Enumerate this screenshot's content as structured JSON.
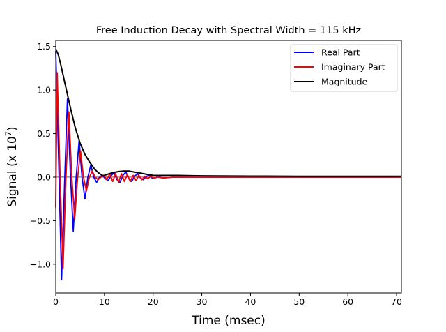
{
  "chart_data": {
    "type": "line",
    "title": "Free Induction Decay with Spectral Width = 115 kHz",
    "xlabel": "Time (msec)",
    "ylabel_main": "Signal (x 10",
    "ylabel_exp": "7",
    "ylabel_close": ")",
    "xlim": [
      0,
      71
    ],
    "ylim": [
      -1.33,
      1.57
    ],
    "xticks": [
      0,
      10,
      20,
      30,
      40,
      50,
      60,
      70
    ],
    "xtick_labels": [
      "0",
      "10",
      "20",
      "30",
      "40",
      "50",
      "60",
      "70"
    ],
    "yticks": [
      -1.0,
      -0.5,
      0.0,
      0.5,
      1.0,
      1.5
    ],
    "ytick_labels": [
      "−1.0",
      "−0.5",
      "0.0",
      "0.5",
      "1.0",
      "1.5"
    ],
    "grid": false,
    "legend_position": "top-right",
    "series": [
      {
        "name": "Real Part",
        "color": "#0000ff",
        "x": [
          0.0,
          0.6,
          1.2,
          1.8,
          2.4,
          3.0,
          3.6,
          4.2,
          4.8,
          5.4,
          6.0,
          6.6,
          7.2,
          7.8,
          8.4,
          9.0,
          9.6,
          10.2,
          10.8,
          11.4,
          12.0,
          12.6,
          13.2,
          13.8,
          14.4,
          15.0,
          15.6,
          16.2,
          16.8,
          17.4,
          18.0,
          18.6,
          19.2,
          19.8,
          20.4,
          21.0,
          22.0,
          24.0,
          27.0,
          30.0,
          35.0,
          40.0,
          50.0,
          60.0,
          71.0
        ],
        "values": [
          1.45,
          0.2,
          -1.18,
          -0.1,
          0.9,
          0.05,
          -0.62,
          0.0,
          0.42,
          0.0,
          -0.25,
          0.0,
          0.14,
          0.0,
          -0.06,
          0.0,
          0.02,
          -0.02,
          -0.04,
          0.02,
          0.05,
          -0.03,
          -0.06,
          0.02,
          0.06,
          -0.02,
          -0.05,
          0.01,
          0.04,
          -0.01,
          -0.03,
          0.01,
          0.02,
          -0.01,
          -0.01,
          0.01,
          -0.01,
          0.0,
          0.0,
          0.0,
          0.0,
          0.0,
          0.0,
          0.0,
          0.0
        ]
      },
      {
        "name": "Imaginary Part",
        "color": "#ff0000",
        "x": [
          0.0,
          0.3,
          0.9,
          1.5,
          2.1,
          2.7,
          3.3,
          3.9,
          4.5,
          5.1,
          5.7,
          6.3,
          6.9,
          7.5,
          8.1,
          8.7,
          9.3,
          9.9,
          10.5,
          11.1,
          11.7,
          12.3,
          12.9,
          13.5,
          14.1,
          14.7,
          15.3,
          15.9,
          16.5,
          17.1,
          17.7,
          18.3,
          18.9,
          19.5,
          20.1,
          21.0,
          22.0,
          24.0,
          27.0,
          30.0,
          35.0,
          40.0,
          50.0,
          60.0,
          71.0
        ],
        "values": [
          -0.35,
          1.2,
          0.0,
          -1.05,
          0.0,
          0.75,
          0.0,
          -0.48,
          0.0,
          0.3,
          0.0,
          -0.16,
          0.0,
          0.07,
          0.0,
          -0.03,
          0.0,
          0.02,
          -0.03,
          0.04,
          -0.05,
          0.04,
          -0.06,
          0.04,
          -0.05,
          0.03,
          -0.05,
          0.02,
          -0.04,
          0.02,
          -0.03,
          0.01,
          -0.02,
          0.01,
          -0.01,
          0.0,
          -0.01,
          0.0,
          0.0,
          0.0,
          0.0,
          0.0,
          0.0,
          0.0,
          0.0
        ]
      },
      {
        "name": "Magnitude",
        "color": "#000000",
        "x": [
          0.0,
          0.5,
          1.0,
          2.0,
          3.0,
          4.0,
          5.0,
          6.0,
          7.0,
          8.0,
          9.0,
          9.5,
          10.0,
          11.0,
          12.0,
          13.0,
          14.0,
          15.0,
          16.0,
          17.0,
          18.0,
          19.0,
          20.0,
          22.0,
          25.0,
          30.0,
          40.0,
          50.0,
          60.0,
          71.0
        ],
        "values": [
          1.47,
          1.41,
          1.3,
          1.05,
          0.8,
          0.57,
          0.39,
          0.26,
          0.17,
          0.09,
          0.04,
          0.02,
          0.02,
          0.04,
          0.055,
          0.065,
          0.07,
          0.07,
          0.06,
          0.05,
          0.04,
          0.03,
          0.02,
          0.02,
          0.02,
          0.015,
          0.012,
          0.01,
          0.01,
          0.01
        ]
      }
    ]
  }
}
